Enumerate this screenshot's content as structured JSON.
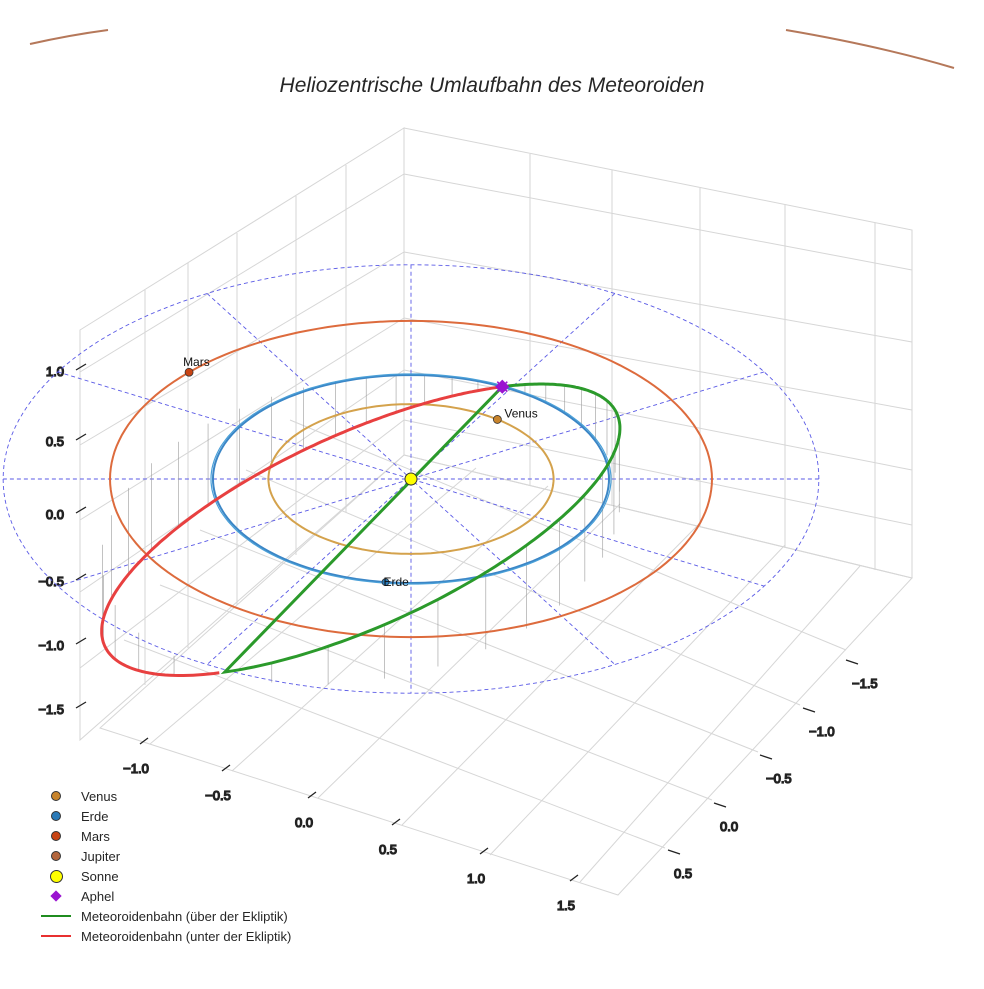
{
  "chart_data": {
    "type": "line3d",
    "title": "Heliozentrische Umlaufbahn des Meteoroiden",
    "x_ticks": [
      "−1.0",
      "−0.5",
      "0.0",
      "0.5",
      "1.0",
      "1.5"
    ],
    "y_ticks": [
      "−1.5",
      "−1.0",
      "−0.5",
      "0.0",
      "0.5"
    ],
    "z_ticks": [
      "1.0",
      "0.5",
      "0.0",
      "−0.5",
      "−1.0",
      "−1.5"
    ],
    "orbits": [
      {
        "name": "Venus",
        "radius_au": 0.72,
        "color": "#d4a24c"
      },
      {
        "name": "Erde",
        "radius_au": 1.0,
        "color": "#3b86c6"
      },
      {
        "name": "Mars",
        "radius_au": 1.52,
        "color": "#dd6b3d"
      },
      {
        "name": "Jupiter",
        "radius_au": 5.2,
        "color": "#b5785a"
      }
    ],
    "planet_labels": {
      "venus": "Venus",
      "erde": "Erde",
      "mars": "Mars"
    },
    "meteoroid": {
      "perihelion_au": 1.0,
      "aphelion_au": 2.1,
      "segments": [
        {
          "name": "Meteoroidenbahn (über der Ekliptik)",
          "color": "#2b9a2b"
        },
        {
          "name": "Meteoroidenbahn (unter der Ekliptik)",
          "color": "#e84040"
        }
      ]
    },
    "legend": [
      {
        "label": "Venus",
        "marker": "dot",
        "color": "#c8842c"
      },
      {
        "label": "Erde",
        "marker": "dot",
        "color": "#2a7ab8"
      },
      {
        "label": "Mars",
        "marker": "dot",
        "color": "#c84414"
      },
      {
        "label": "Jupiter",
        "marker": "dot",
        "color": "#b3653c"
      },
      {
        "label": "Sonne",
        "marker": "bigdot",
        "color": "#ffff00"
      },
      {
        "label": "Aphel",
        "marker": "diamond",
        "color": "#9a14d0"
      },
      {
        "label": "Meteoroidenbahn (über der Ekliptik)",
        "marker": "line",
        "color": "#1f8c1f"
      },
      {
        "label": "Meteoroidenbahn (unter der Ekliptik)",
        "marker": "line",
        "color": "#e83030"
      }
    ]
  }
}
